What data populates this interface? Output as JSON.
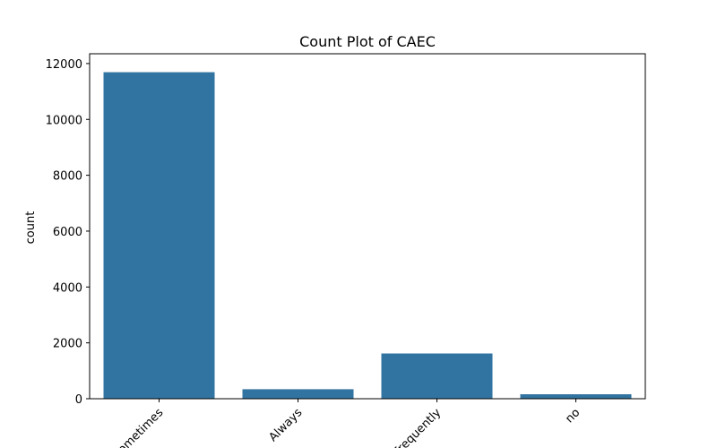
{
  "chart_data": {
    "type": "bar",
    "title": "Count Plot of CAEC",
    "xlabel": "",
    "ylabel": "count",
    "categories": [
      "Sometimes",
      "Always",
      "Frequently",
      "no"
    ],
    "values": [
      11690,
      340,
      1620,
      160
    ],
    "ylim": [
      0,
      12350
    ],
    "yticks": [
      0,
      2000,
      4000,
      6000,
      8000,
      10000,
      12000
    ],
    "ytick_labels": [
      "0",
      "2000",
      "4000",
      "6000",
      "8000",
      "10000",
      "12000"
    ],
    "bar_color": "#3274a1",
    "grid": false,
    "legend": "none",
    "xtick_rotation_deg": 45
  }
}
